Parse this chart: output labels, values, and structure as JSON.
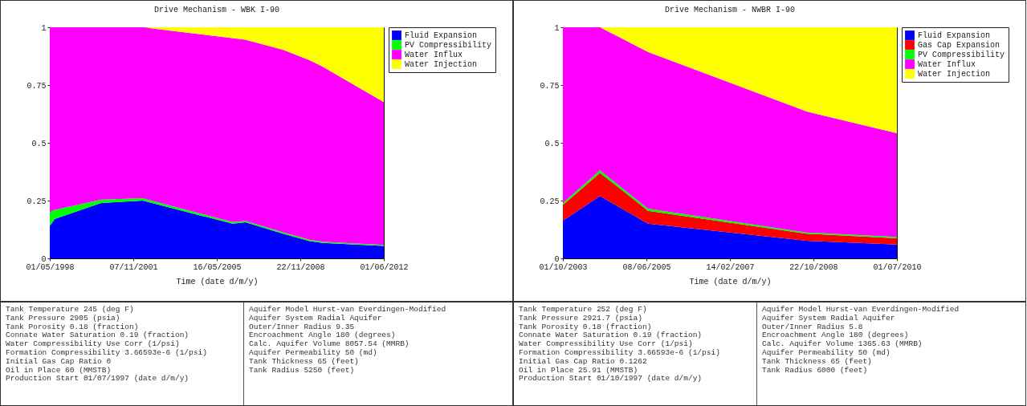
{
  "chart_data": [
    {
      "type": "area",
      "stacked": true,
      "title": "Drive Mechanism - WBK I-90",
      "xlabel": "Time (date d/m/y)",
      "legend": "right",
      "x": [
        "1998-05-01",
        "1998-07-15",
        "2000-07-01",
        "2002-04-01",
        "2006-01-15",
        "2006-08-01",
        "2008-03-01",
        "2009-04-15",
        "2009-11-01",
        "2012-06-01"
      ],
      "series": [
        {
          "name": "Fluid Expansion",
          "color": "#0000ff",
          "values": [
            0.14,
            0.17,
            0.24,
            0.25,
            0.15,
            0.156,
            0.107,
            0.075,
            0.067,
            0.054
          ]
        },
        {
          "name": "PV Compressibility",
          "color": "#00ff00",
          "values": [
            0.06,
            0.04,
            0.014,
            0.01,
            0.007,
            0.006,
            0.006,
            0.006,
            0.005,
            0.004
          ]
        },
        {
          "name": "Water Influx",
          "color": "#ff00ff",
          "values": [
            0.8,
            0.79,
            0.746,
            0.74,
            0.796,
            0.784,
            0.79,
            0.777,
            0.758,
            0.618
          ]
        },
        {
          "name": "Water Injection",
          "color": "#ffff00",
          "values": [
            0,
            0,
            0,
            0,
            0.047,
            0.054,
            0.097,
            0.142,
            0.17,
            0.324
          ]
        }
      ],
      "xlim": [
        "1998-05-01",
        "2012-06-01"
      ],
      "xticks": [
        {
          "value": "1998-05-01",
          "label": "01/05/1998"
        },
        {
          "value": "2001-11-07",
          "label": "07/11/2001"
        },
        {
          "value": "2005-05-16",
          "label": "16/05/2005"
        },
        {
          "value": "2008-11-22",
          "label": "22/11/2008"
        },
        {
          "value": "2012-06-01",
          "label": "01/06/2012"
        }
      ],
      "ylim": [
        0,
        1
      ],
      "yticks": [
        0,
        0.25,
        0.5,
        0.75,
        1
      ],
      "annotations": [
        "Tank Temperature 245 (deg F)",
        "Tank Pressure 2905 (psia)",
        "Tank Porosity 0.18 (fraction)",
        "Connate Water Saturation 0.19 (fraction)",
        "Water Compressibility Use Corr (1/psi)",
        "Formation Compressibility 3.66593e-6 (1/psi)",
        "Initial Gas Cap Ratio 0",
        "Oil in Place 60 (MMSTB)",
        "Production Start 01/07/1997 (date d/m/y)",
        "Aquifer Model Hurst-van Everdingen-Modified",
        "Aquifer System Radial Aquifer",
        "Outer/Inner Radius 9.35",
        "Encroachment Angle 180 (degrees)",
        "Calc. Aquifer Volume 8057.54 (MMRB)",
        "Aquifer Permeability 50 (md)",
        "Tank Thickness 65 (feet)",
        "Tank Radius 5250 (feet)"
      ]
    },
    {
      "type": "area",
      "stacked": true,
      "title": "Drive Mechanism - NWBR I-90",
      "xlabel": "Time (date d/m/y)",
      "legend": "right",
      "x": [
        "2003-10-01",
        "2004-07-01",
        "2005-06-20",
        "2008-09-01",
        "2010-07-01"
      ],
      "series": [
        {
          "name": "Fluid Expansion",
          "color": "#0000ff",
          "values": [
            0.163,
            0.27,
            0.15,
            0.076,
            0.06
          ]
        },
        {
          "name": "Gas Cap Expansion",
          "color": "#ff0000",
          "values": [
            0.068,
            0.1,
            0.056,
            0.031,
            0.027
          ]
        },
        {
          "name": "PV Compressibility",
          "color": "#00ff00",
          "values": [
            0.009,
            0.011,
            0.009,
            0.005,
            0.006
          ]
        },
        {
          "name": "Water Influx",
          "color": "#ff00ff",
          "values": [
            0.76,
            0.619,
            0.678,
            0.524,
            0.449
          ]
        },
        {
          "name": "Water Injection",
          "color": "#ffff00",
          "values": [
            0,
            0,
            0.107,
            0.364,
            0.458
          ]
        }
      ],
      "xlim": [
        "2003-10-01",
        "2010-07-01"
      ],
      "xticks": [
        {
          "value": "2003-10-01",
          "label": "01/10/2003"
        },
        {
          "value": "2005-06-08",
          "label": "08/06/2005"
        },
        {
          "value": "2007-02-14",
          "label": "14/02/2007"
        },
        {
          "value": "2008-10-22",
          "label": "22/10/2008"
        },
        {
          "value": "2010-07-01",
          "label": "01/07/2010"
        }
      ],
      "ylim": [
        0,
        1
      ],
      "yticks": [
        0,
        0.25,
        0.5,
        0.75,
        1
      ],
      "annotations": [
        "Tank Temperature 252 (deg F)",
        "Tank Pressure 2921.7 (psia)",
        "Tank Porosity 0.18 (fraction)",
        "Connate Water Saturation 0.19 (fraction)",
        "Water Compressibility Use Corr (1/psi)",
        "Formation Compressibility 3.66593e-6 (1/psi)",
        "Initial Gas Cap Ratio 0.1262",
        "Oil in Place 25.91 (MMSTB)",
        "Production Start 01/10/1997 (date d/m/y)",
        "Aquifer Model Hurst-van Everdingen-Modified",
        "Aquifer System Radial Aquifer",
        "Outer/Inner Radius 5.8",
        "Encroachment Angle 180 (degrees)",
        "Calc. Aquifer Volume 1365.63 (MMRB)",
        "Aquifer Permeability 50 (md)",
        "Tank Thickness 65 (feet)",
        "Tank Radius 6000 (feet)"
      ]
    }
  ]
}
